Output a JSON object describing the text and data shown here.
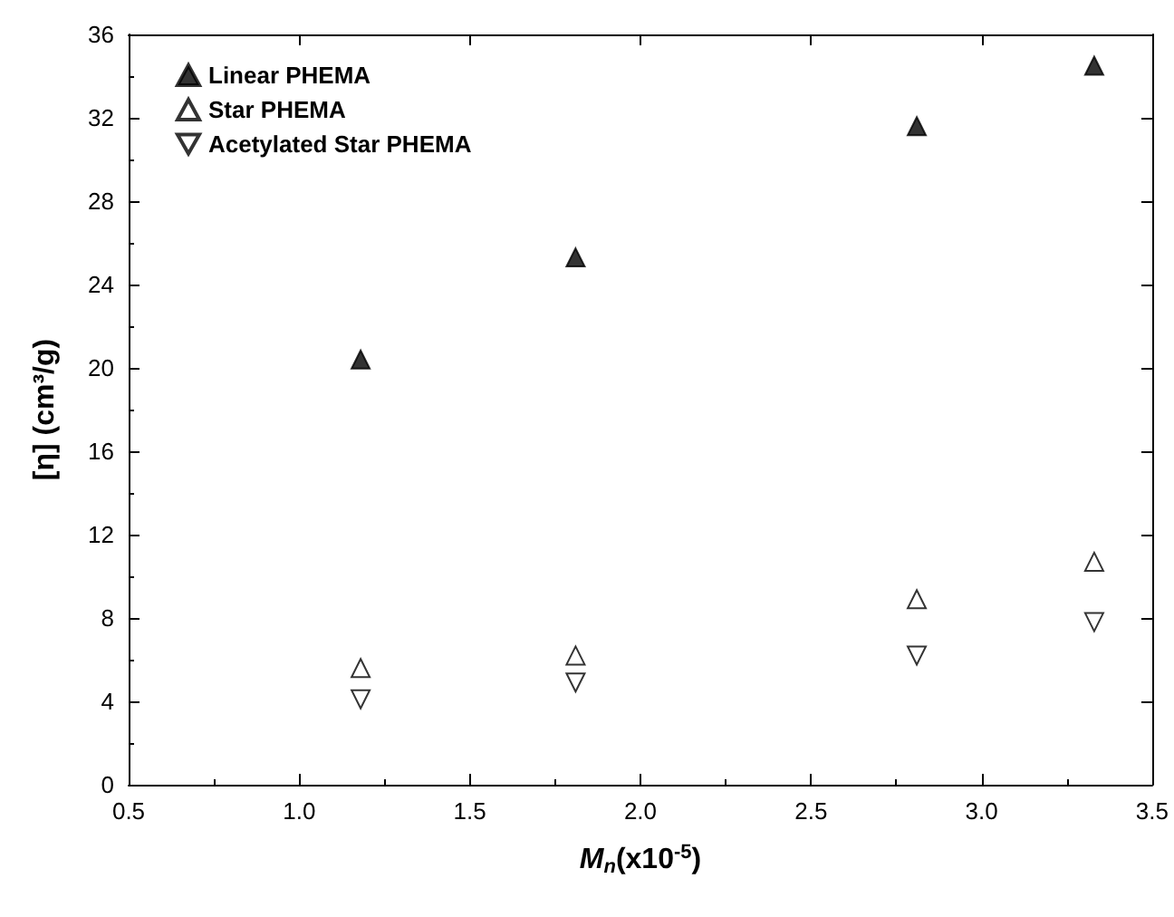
{
  "chart_data": {
    "type": "scatter",
    "xlabel": "M$_{n}$(x10$^{-5}$)",
    "ylabel": "[η] (cm³/g)",
    "xlim": [
      0.5,
      3.5
    ],
    "xticks": [
      0.5,
      {
        "value": 1,
        "label": "1.0"
      },
      1.5,
      {
        "value": 2,
        "label": "2.0"
      },
      2.5,
      {
        "value": 3,
        "label": "3.0"
      },
      3.5
    ],
    "ylim": [
      0,
      36
    ],
    "yticks": [
      0,
      4,
      8,
      12,
      16,
      20,
      24,
      28,
      32,
      36
    ],
    "legend": "top left",
    "grid": false,
    "series": [
      {
        "name": "Linear PHEMA",
        "color": "#000000",
        "marker": "triangle",
        "x": [
          1.18,
          1.81,
          2.81,
          3.33
        ],
        "values": [
          20.4,
          25.3,
          31.6,
          34.5
        ]
      },
      {
        "name": "Star PHEMA",
        "color": "#ffffff",
        "marker": "triangle",
        "x": [
          1.18,
          1.81,
          2.81,
          3.33
        ],
        "values": [
          5.6,
          6.2,
          8.9,
          10.7
        ]
      },
      {
        "name": "Acetylated Star PHEMA",
        "color": "#ffffff",
        "marker": "triangle-down",
        "x": [
          1.18,
          1.81,
          2.81,
          3.33
        ],
        "values": [
          4.1,
          4.9,
          6.2,
          7.8
        ]
      }
    ]
  }
}
